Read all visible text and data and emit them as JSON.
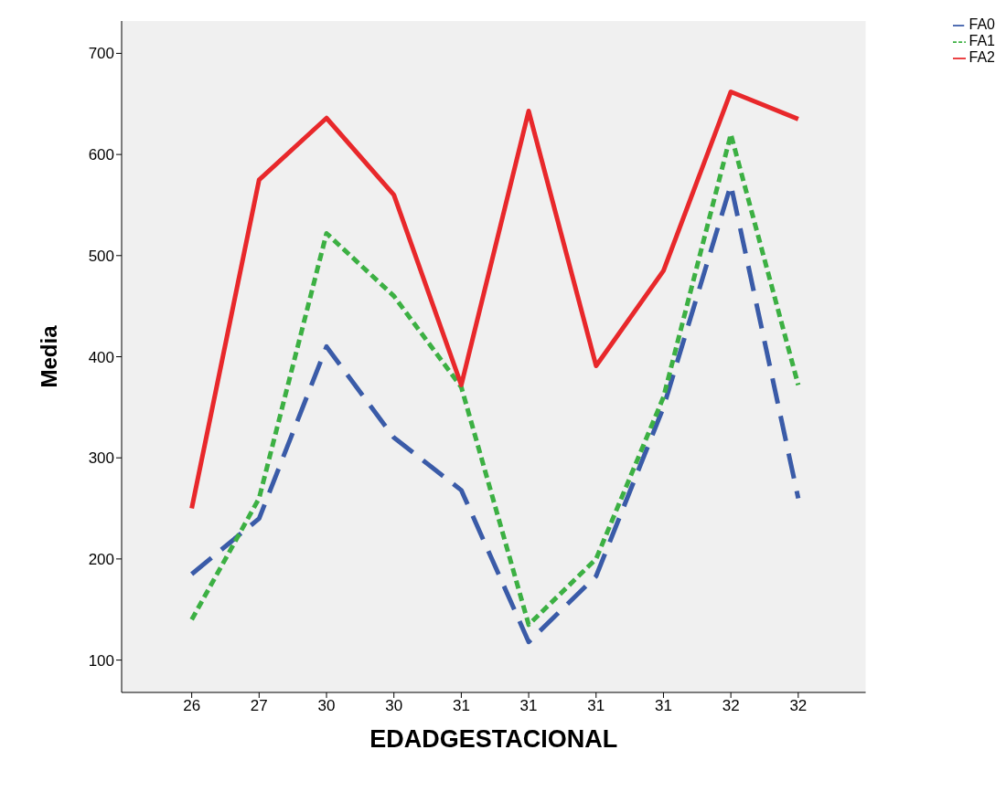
{
  "chart_data": {
    "type": "line",
    "xlabel": "EDADGESTACIONAL",
    "ylabel": "Media",
    "categories": [
      "26",
      "27",
      "30",
      "30",
      "31",
      "31",
      "31",
      "31",
      "32",
      "32"
    ],
    "series": [
      {
        "name": "FA0",
        "color": "#3a5ba8",
        "line_style": "dashed",
        "values": [
          185,
          240,
          410,
          320,
          268,
          118,
          183,
          350,
          570,
          260
        ]
      },
      {
        "name": "FA1",
        "color": "#3cb043",
        "line_style": "dotted",
        "values": [
          140,
          260,
          522,
          460,
          370,
          135,
          200,
          360,
          620,
          372
        ]
      },
      {
        "name": "FA2",
        "color": "#e8282b",
        "line_style": "solid",
        "values": [
          250,
          575,
          636,
          560,
          372,
          643,
          391,
          485,
          662,
          635
        ]
      }
    ],
    "ylim": [
      68,
      732
    ],
    "yticks": [
      100,
      200,
      300,
      400,
      500,
      600,
      700
    ],
    "grid": false,
    "legend": "top right",
    "marker": "none"
  }
}
